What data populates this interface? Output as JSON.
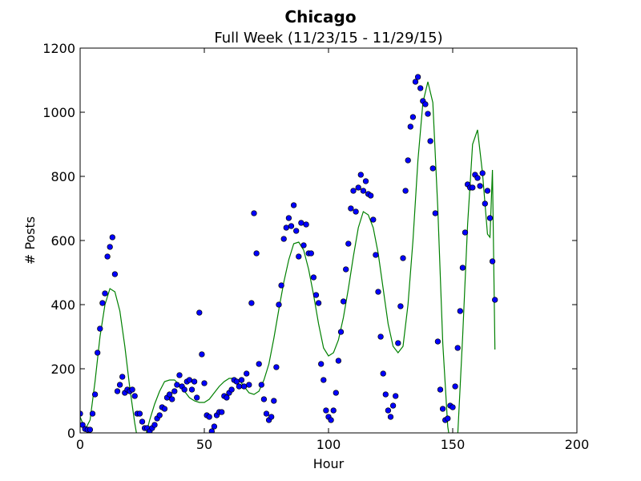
{
  "chart_data": {
    "type": "scatter",
    "title": "Chicago",
    "subtitle": "Full Week (11/23/15 - 11/29/15)",
    "xlabel": "Hour",
    "ylabel": "# Posts",
    "xlim": [
      0,
      200
    ],
    "ylim": [
      0,
      1200
    ],
    "xticks": [
      0,
      50,
      100,
      150,
      200
    ],
    "xtick_labels": [
      "0",
      "50",
      "100",
      "150",
      "200"
    ],
    "yticks": [
      0,
      200,
      400,
      600,
      800,
      1000,
      1200
    ],
    "ytick_labels": [
      "0",
      "200",
      "400",
      "600",
      "800",
      "1000",
      "1200"
    ],
    "grid": false,
    "colors": {
      "points": "#0000ff",
      "point_edge": "#000000",
      "fit": "#008000",
      "axes": "#000000"
    },
    "series": [
      {
        "type": "scatter",
        "x": [
          0,
          1,
          2,
          3,
          4,
          5,
          6,
          7,
          8,
          9,
          10,
          11,
          12,
          13,
          14,
          15,
          16,
          17,
          18,
          19,
          20,
          21,
          22,
          23,
          24,
          25,
          26,
          27,
          28,
          29,
          30,
          31,
          32,
          33,
          34,
          35,
          36,
          37,
          38,
          39,
          40,
          41,
          42,
          43,
          44,
          45,
          46,
          47,
          48,
          49,
          50,
          51,
          52,
          53,
          54,
          55,
          56,
          57,
          58,
          59,
          60,
          61,
          62,
          63,
          64,
          65,
          66,
          67,
          68,
          69,
          70,
          71,
          72,
          73,
          74,
          75,
          76,
          77,
          78,
          79,
          80,
          81,
          82,
          83,
          84,
          85,
          86,
          87,
          88,
          89,
          90,
          91,
          92,
          93,
          94,
          95,
          96,
          97,
          98,
          99,
          100,
          101,
          102,
          103,
          104,
          105,
          106,
          107,
          108,
          109,
          110,
          111,
          112,
          113,
          114,
          115,
          116,
          117,
          118,
          119,
          120,
          121,
          122,
          123,
          124,
          125,
          126,
          127,
          128,
          129,
          130,
          131,
          132,
          133,
          134,
          135,
          136,
          137,
          138,
          139,
          140,
          141,
          142,
          143,
          144,
          145,
          146,
          147,
          148,
          149,
          150,
          151,
          152,
          153,
          154,
          155,
          156,
          157,
          158,
          159,
          160,
          161,
          162,
          163,
          164,
          165,
          166,
          167
        ],
        "y": [
          60,
          25,
          12,
          10,
          10,
          60,
          120,
          250,
          325,
          405,
          435,
          550,
          580,
          610,
          495,
          130,
          150,
          175,
          125,
          135,
          130,
          135,
          115,
          60,
          60,
          35,
          15,
          15,
          5,
          15,
          25,
          45,
          55,
          80,
          75,
          110,
          120,
          105,
          130,
          150,
          180,
          145,
          135,
          160,
          165,
          135,
          160,
          110,
          375,
          245,
          155,
          55,
          50,
          5,
          20,
          55,
          65,
          65,
          115,
          110,
          125,
          135,
          165,
          160,
          145,
          165,
          145,
          185,
          150,
          405,
          685,
          560,
          215,
          150,
          105,
          60,
          40,
          50,
          100,
          205,
          400,
          460,
          605,
          640,
          670,
          645,
          710,
          630,
          550,
          655,
          585,
          650,
          560,
          560,
          485,
          430,
          405,
          215,
          165,
          70,
          50,
          40,
          70,
          125,
          225,
          315,
          410,
          510,
          590,
          700,
          755,
          690,
          765,
          805,
          755,
          785,
          745,
          740,
          665,
          555,
          440,
          300,
          185,
          120,
          70,
          50,
          85,
          115,
          280,
          395,
          545,
          755,
          850,
          955,
          985,
          1095,
          1110,
          1075,
          1035,
          1025,
          995,
          910,
          825,
          685,
          285,
          135,
          75,
          40,
          45,
          85,
          80,
          145,
          265,
          380,
          515,
          625,
          775,
          765,
          765,
          805,
          795,
          770,
          810,
          715,
          755,
          670,
          535,
          415
        ]
      },
      {
        "type": "line",
        "x": [
          0,
          2,
          4,
          6,
          8,
          10,
          12,
          14,
          16,
          18,
          20,
          22,
          24,
          26,
          28,
          30,
          32,
          34,
          36,
          38,
          40,
          42,
          44,
          46,
          48,
          50,
          52,
          54,
          56,
          58,
          60,
          62,
          64,
          66,
          68,
          70,
          72,
          74,
          76,
          78,
          80,
          82,
          84,
          86,
          88,
          90,
          92,
          94,
          96,
          98,
          100,
          102,
          104,
          106,
          108,
          110,
          112,
          114,
          116,
          118,
          120,
          122,
          124,
          126,
          128,
          130,
          132,
          134,
          136,
          138,
          140,
          142,
          144,
          146,
          148,
          150,
          152,
          154,
          156,
          158,
          160,
          162,
          164,
          165,
          166,
          167
        ],
        "y": [
          50,
          10,
          40,
          160,
          300,
          400,
          450,
          440,
          380,
          270,
          140,
          30,
          -60,
          -20,
          40,
          90,
          130,
          160,
          165,
          165,
          150,
          130,
          110,
          100,
          95,
          95,
          105,
          125,
          145,
          160,
          170,
          170,
          165,
          145,
          125,
          120,
          130,
          165,
          215,
          295,
          385,
          470,
          540,
          590,
          595,
          570,
          510,
          430,
          340,
          265,
          240,
          250,
          290,
          360,
          450,
          550,
          640,
          690,
          680,
          640,
          560,
          450,
          340,
          270,
          250,
          270,
          400,
          600,
          850,
          1030,
          1095,
          1030,
          700,
          280,
          20,
          -80,
          -10,
          300,
          650,
          900,
          945,
          810,
          620,
          610,
          820,
          260
        ]
      }
    ]
  }
}
